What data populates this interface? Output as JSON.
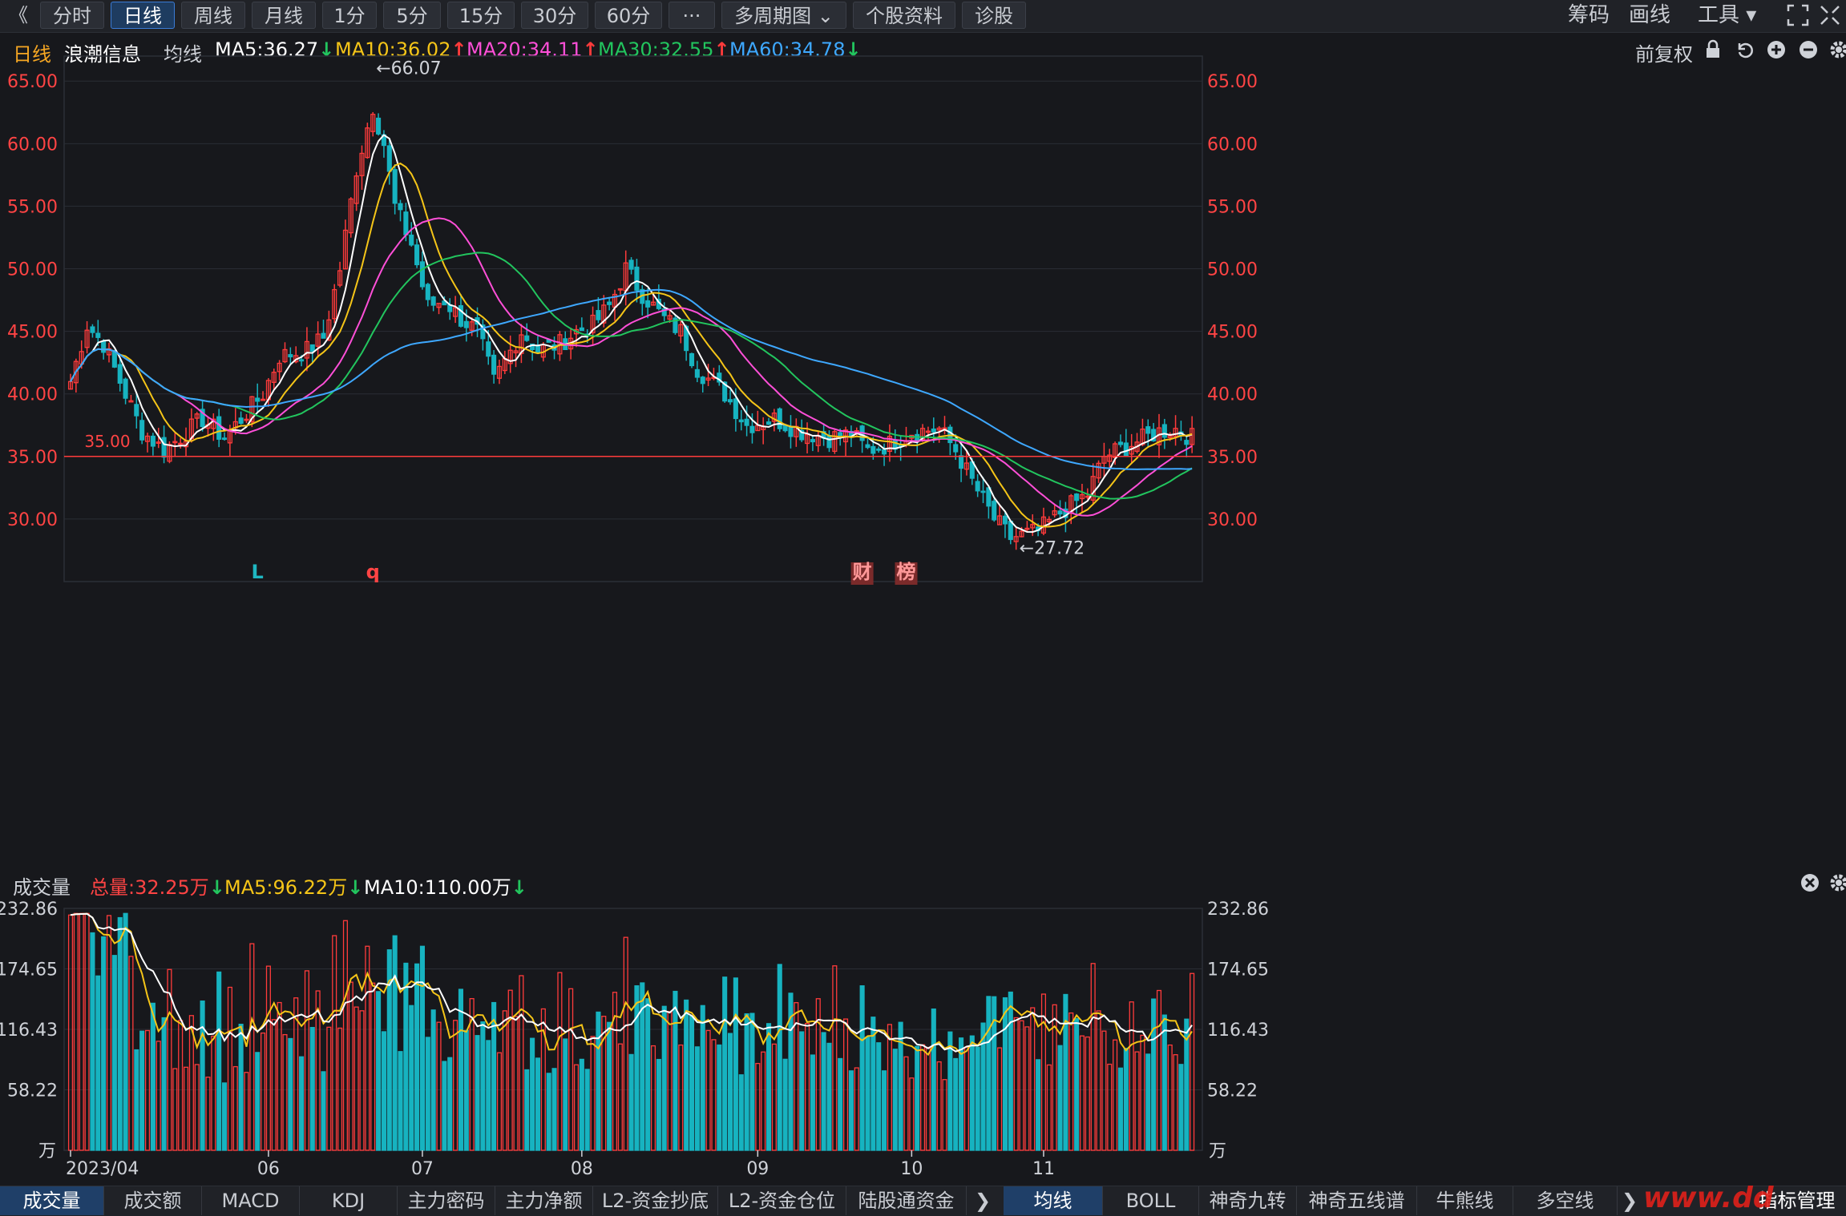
{
  "toolbar": {
    "back_glyph": "《",
    "tabs": [
      "分时",
      "日线",
      "周线",
      "月线",
      "1分",
      "5分",
      "15分",
      "30分",
      "60分",
      "···",
      "多周期图 ⌄",
      "个股资料",
      "诊股"
    ],
    "active_tab": 1,
    "right_items": [
      "筹码",
      "画线",
      "工具 ▾"
    ]
  },
  "header": {
    "period": "日线",
    "stock_name": "浪潮信息",
    "ma_label": "均线",
    "ma": [
      {
        "label": "MA5:36.27",
        "arrow": "↓",
        "dir": "down",
        "color": "#ffffff"
      },
      {
        "label": "MA10:36.02",
        "arrow": "↑",
        "dir": "up",
        "color": "#f5c518"
      },
      {
        "label": "MA20:34.11",
        "arrow": "↑",
        "dir": "up",
        "color": "#ff4fd8"
      },
      {
        "label": "MA30:32.55",
        "arrow": "↑",
        "dir": "up",
        "color": "#22c55e"
      },
      {
        "label": "MA60:34.78",
        "arrow": "↓",
        "dir": "down",
        "color": "#3ea8ff"
      }
    ],
    "adjust_label": "前复权"
  },
  "volume_header": {
    "title": "成交量",
    "total": {
      "label": "总量:32.25万",
      "arrow": "↓",
      "color": "#ff4444"
    },
    "ma5": {
      "label": "MA5:96.22万",
      "arrow": "↓",
      "color": "#f5c518"
    },
    "ma10": {
      "label": "MA10:110.00万",
      "arrow": "↓",
      "color": "#ffffff"
    }
  },
  "chart_data": [
    {
      "type": "candlestick",
      "title": "浪潮信息 日线",
      "y_ticks": [
        "65.00",
        "60.00",
        "55.00",
        "50.00",
        "45.00",
        "40.00",
        "35.00",
        "30.00"
      ],
      "ylim": [
        25.0,
        67.0
      ],
      "high_label": "←66.07",
      "low_label": "←27.72",
      "horizontal_line": {
        "value": 35.0,
        "label": "35.00"
      },
      "x_labels": [
        "2023/04",
        "06",
        "07",
        "08",
        "09",
        "10",
        "11"
      ],
      "marks": [
        {
          "text": "L",
          "color": "#1fb6c1",
          "idx": 43
        },
        {
          "text": "q",
          "color": "#ff4444",
          "idx": 69
        },
        {
          "text": "财",
          "color": "#ff9999",
          "idx": 182
        },
        {
          "text": "榜",
          "color": "#ff9999",
          "idx": 192
        }
      ],
      "series_names": [
        "MA5",
        "MA10",
        "MA20",
        "MA30",
        "MA60"
      ],
      "series_colors": [
        "#ffffff",
        "#f5c518",
        "#ff4fd8",
        "#22c55e",
        "#3ea8ff"
      ]
    },
    {
      "type": "bar",
      "title": "成交量",
      "unit": "万",
      "y_ticks": [
        "232.86",
        "174.65",
        "116.43",
        "58.22"
      ],
      "ylim": [
        0,
        232.86
      ],
      "series_names": [
        "MA5",
        "MA10"
      ]
    }
  ],
  "bottom": {
    "tabs": [
      "成交量",
      "成交额",
      "MACD",
      "KDJ",
      "主力密码",
      "主力净额",
      "L2-资金抄底",
      "L2-资金仓位",
      "陆股通资金"
    ],
    "nav_glyph": "❯",
    "right_tabs": [
      "均线",
      "BOLL",
      "神奇九转",
      "神奇五线谱",
      "牛熊线",
      "多空线"
    ],
    "nav2_glyph": "❯",
    "settings": "指标管理",
    "watermark": "www.dd"
  }
}
